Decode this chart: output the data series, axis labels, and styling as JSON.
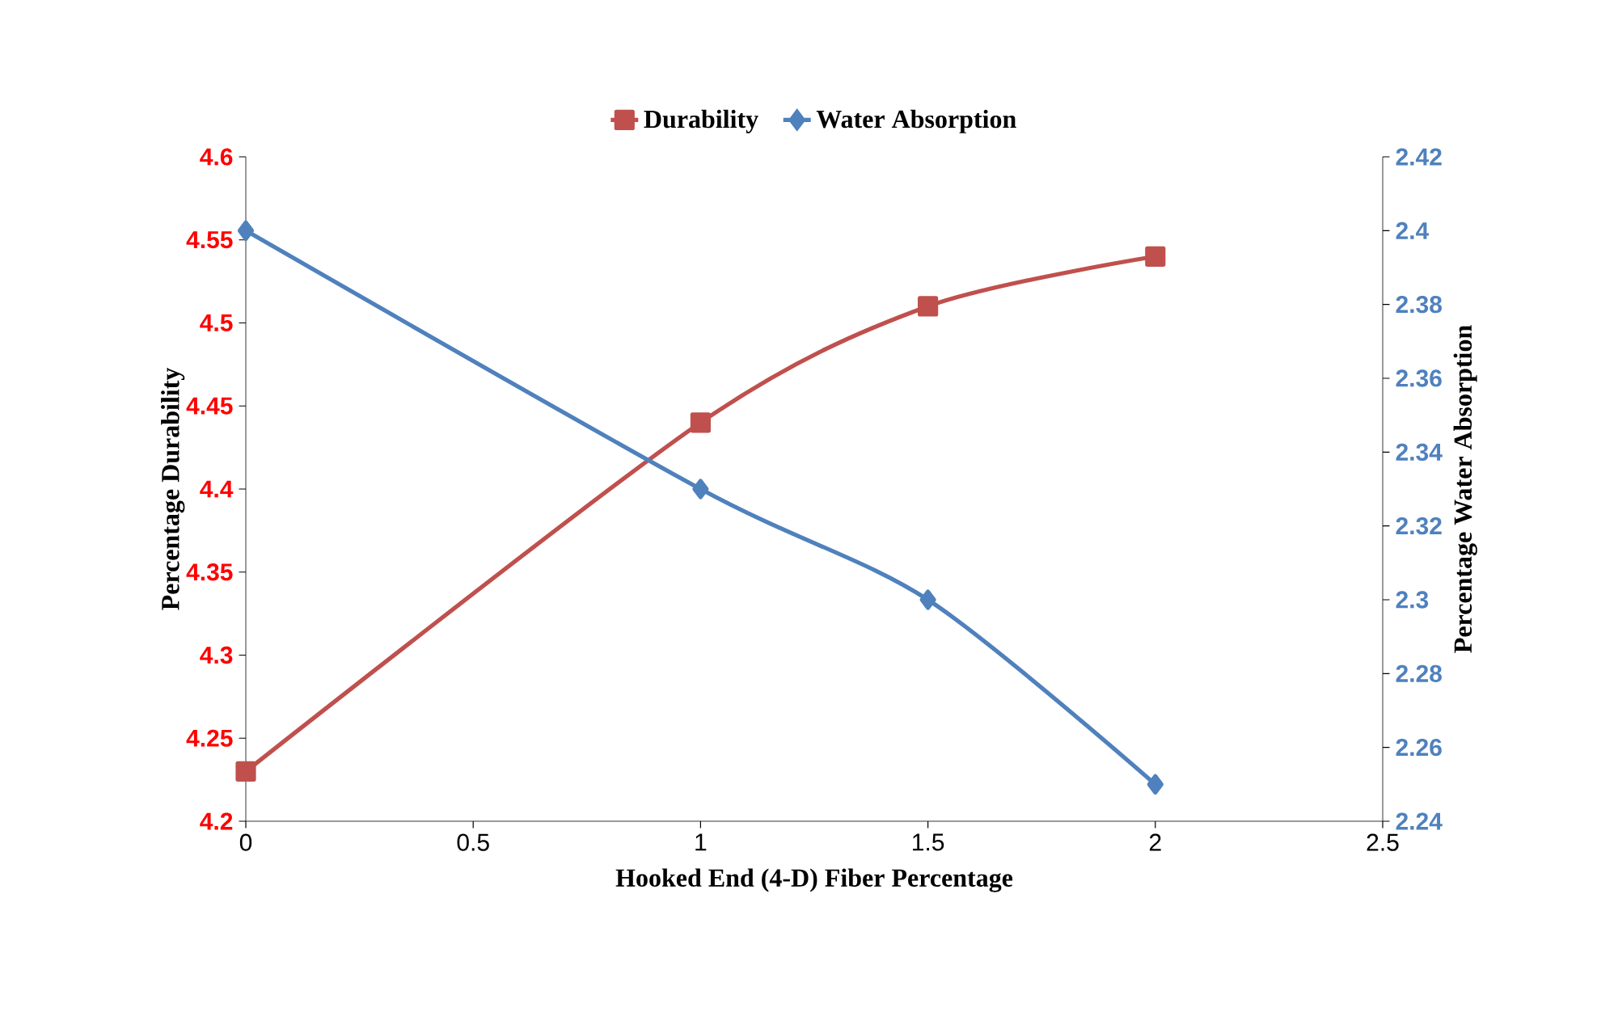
{
  "chart_data": {
    "type": "line",
    "xlabel": "Hooked End (4-D) Fiber Percentage",
    "ylabel": "Percentage Durability",
    "y2label": "Percentage Water Absorption",
    "x": [
      0,
      1,
      1.5,
      2
    ],
    "series": [
      {
        "name": "Durability",
        "color": "#c0504d",
        "marker": "square",
        "values": [
          4.23,
          4.44,
          4.51,
          4.54
        ]
      },
      {
        "name": "Water Absorption",
        "color": "#4f81bd",
        "marker": "diamond",
        "axis": "y2",
        "values": [
          2.4,
          2.33,
          2.3,
          2.25
        ]
      }
    ],
    "xlim": [
      0,
      2.5
    ],
    "xticks": [
      0,
      0.5,
      1,
      1.5,
      2,
      2.5
    ],
    "ylim": [
      4.2,
      4.6
    ],
    "yticks": [
      4.2,
      4.25,
      4.3,
      4.35,
      4.4,
      4.45,
      4.5,
      4.55,
      4.6
    ],
    "y2lim": [
      2.24,
      2.42
    ],
    "y2ticks": [
      2.24,
      2.26,
      2.28,
      2.3,
      2.32,
      2.34,
      2.36,
      2.38,
      2.4,
      2.42
    ],
    "legend": "top",
    "line_style": "solid",
    "grid": false
  }
}
